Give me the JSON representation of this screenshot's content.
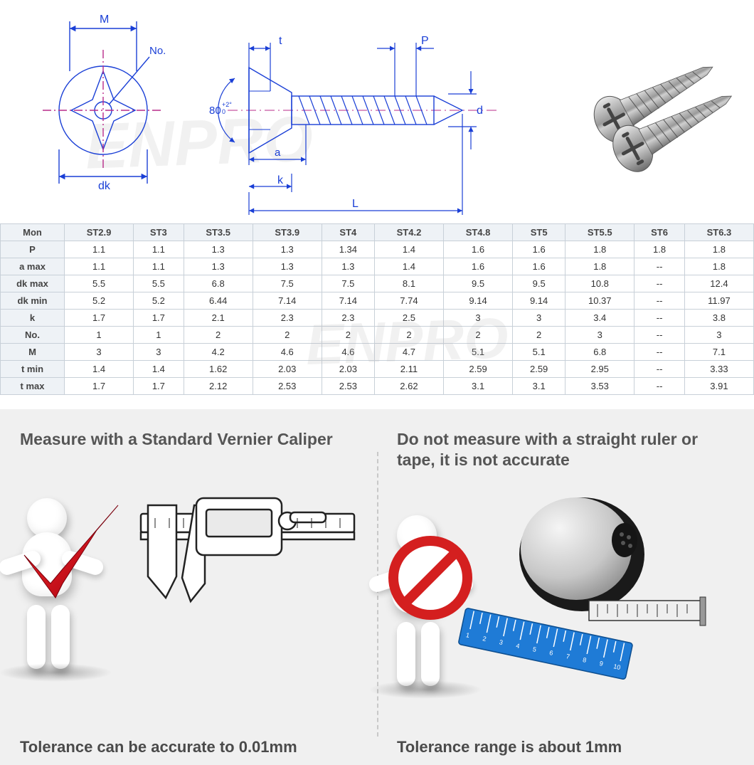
{
  "diagram": {
    "labels": {
      "M": "M",
      "No": "No.",
      "dk": "dk",
      "angle": "80",
      "angle_tol": "+2°\n0",
      "t": "t",
      "P": "P",
      "d": "d",
      "a": "a",
      "k": "k",
      "L": "L"
    },
    "colors": {
      "line": "#1a3fd6",
      "centerline": "#b82b8a"
    },
    "watermark_text": "ENPRO"
  },
  "table": {
    "header_label": "Mon",
    "columns": [
      "ST2.9",
      "ST3",
      "ST3.5",
      "ST3.9",
      "ST4",
      "ST4.2",
      "ST4.8",
      "ST5",
      "ST5.5",
      "ST6",
      "ST6.3"
    ],
    "rows": [
      {
        "label": "P",
        "values": [
          "1.1",
          "1.1",
          "1.3",
          "1.3",
          "1.34",
          "1.4",
          "1.6",
          "1.6",
          "1.8",
          "1.8",
          "1.8"
        ]
      },
      {
        "label": "a max",
        "values": [
          "1.1",
          "1.1",
          "1.3",
          "1.3",
          "1.3",
          "1.4",
          "1.6",
          "1.6",
          "1.8",
          "--",
          "1.8"
        ]
      },
      {
        "label": "dk max",
        "values": [
          "5.5",
          "5.5",
          "6.8",
          "7.5",
          "7.5",
          "8.1",
          "9.5",
          "9.5",
          "10.8",
          "--",
          "12.4"
        ]
      },
      {
        "label": "dk min",
        "values": [
          "5.2",
          "5.2",
          "6.44",
          "7.14",
          "7.14",
          "7.74",
          "9.14",
          "9.14",
          "10.37",
          "--",
          "11.97"
        ]
      },
      {
        "label": "k",
        "values": [
          "1.7",
          "1.7",
          "2.1",
          "2.3",
          "2.3",
          "2.5",
          "3",
          "3",
          "3.4",
          "--",
          "3.8"
        ]
      },
      {
        "label": "No.",
        "values": [
          "1",
          "1",
          "2",
          "2",
          "2",
          "2",
          "2",
          "2",
          "3",
          "--",
          "3"
        ]
      },
      {
        "label": "M",
        "values": [
          "3",
          "3",
          "4.2",
          "4.6",
          "4.6",
          "4.7",
          "5.1",
          "5.1",
          "6.8",
          "--",
          "7.1"
        ]
      },
      {
        "label": "t min",
        "values": [
          "1.4",
          "1.4",
          "1.62",
          "2.03",
          "2.03",
          "2.11",
          "2.59",
          "2.59",
          "2.95",
          "--",
          "3.33"
        ]
      },
      {
        "label": "t max",
        "values": [
          "1.7",
          "1.7",
          "2.12",
          "2.53",
          "2.53",
          "2.62",
          "3.1",
          "3.1",
          "3.53",
          "--",
          "3.91"
        ]
      }
    ],
    "colors": {
      "border": "#c8d0d8",
      "header_bg": "#eef2f6",
      "text": "#444444"
    }
  },
  "info": {
    "left": {
      "title": "Measure with a Standard Vernier Caliper",
      "footer": "Tolerance can be accurate to 0.01mm",
      "check_color": "#cc0011"
    },
    "right": {
      "title": "Do not measure with a straight ruler or tape, it is not accurate",
      "footer": "Tolerance range is about 1mm",
      "prohibit_color": "#d41f1f",
      "ruler_color": "#1f7bd6"
    },
    "panel_bg": "#f0f0f0",
    "title_color": "#555555",
    "footer_color": "#4a4a4a"
  }
}
